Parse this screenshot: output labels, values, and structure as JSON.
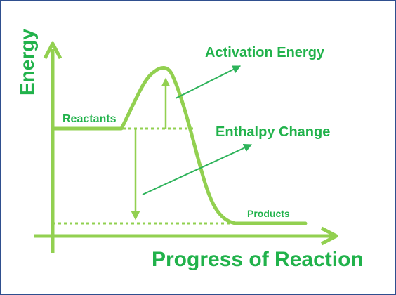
{
  "diagram": {
    "y_axis_label": "Energy",
    "x_axis_label": "Progress of Reaction",
    "reactants_label": "Reactants",
    "products_label": "Products",
    "activation_energy_label": "Activation Energy",
    "enthalpy_change_label": "Enthalpy Change",
    "colors": {
      "border": "#2f4f8f",
      "curve": "#92d050",
      "text": "#21b24b",
      "pointer": "#2db35a"
    }
  }
}
